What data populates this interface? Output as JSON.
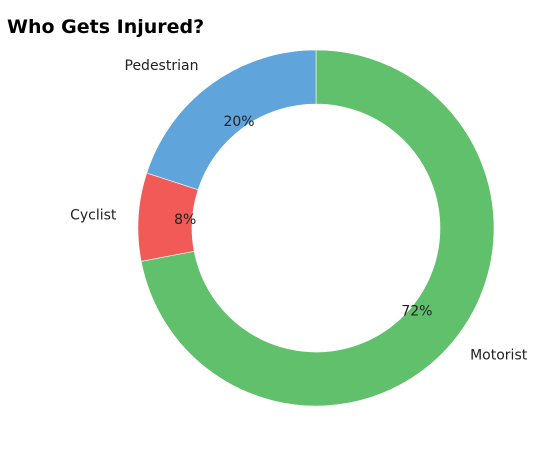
{
  "chart_data": {
    "type": "pie",
    "variant": "donut",
    "title": "Who Gets Injured?",
    "categories": [
      "Motorist",
      "Cyclist",
      "Pedestrian"
    ],
    "values": [
      72,
      8,
      20
    ],
    "value_labels": [
      "72%",
      "8%",
      "20%"
    ],
    "colors": [
      "#61c06b",
      "#f25a58",
      "#5fa5dc"
    ],
    "start_angle": "top, clockwise",
    "legend": "none"
  }
}
